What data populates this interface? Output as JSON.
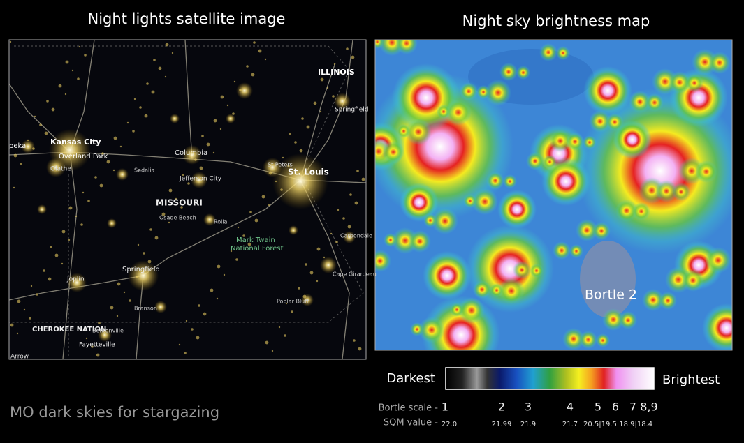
{
  "left_panel": {
    "title": "Night lights satellite image",
    "labels": [
      "Kansas City",
      "Overland Park",
      "Olathe",
      "peka",
      "Columbia",
      "Sedalia",
      "Jefferson City",
      "St Peters",
      "St. Louis",
      "MISSOURI",
      "Osage Beach",
      "Rolla",
      "Mark Twain National Forest",
      "Springfield",
      "Joplin",
      "Branson",
      "Poplar Bluff",
      "Cape Girardeau",
      "Carbondale",
      "ILLINOIS",
      "Springfield",
      "CHEROKEE NATION",
      "Bentonville",
      "Fayetteville",
      "Arrow"
    ]
  },
  "right_panel": {
    "title": "Night sky brightness map",
    "annotation": "Bortle 2"
  },
  "legend": {
    "left_label": "Darkest",
    "right_label": "Brightest",
    "bortle_label": "Bortle scale -",
    "bortle_values": [
      "1",
      "2",
      "3",
      "4",
      "5",
      "6",
      "7",
      "8,9"
    ],
    "sqm_label": "SQM value -",
    "sqm_values": [
      "22.0",
      "21.99",
      "21.9",
      "21.7",
      "20.5|19.5|18.9|18.4"
    ]
  },
  "caption": "MO dark skies for stargazing"
}
